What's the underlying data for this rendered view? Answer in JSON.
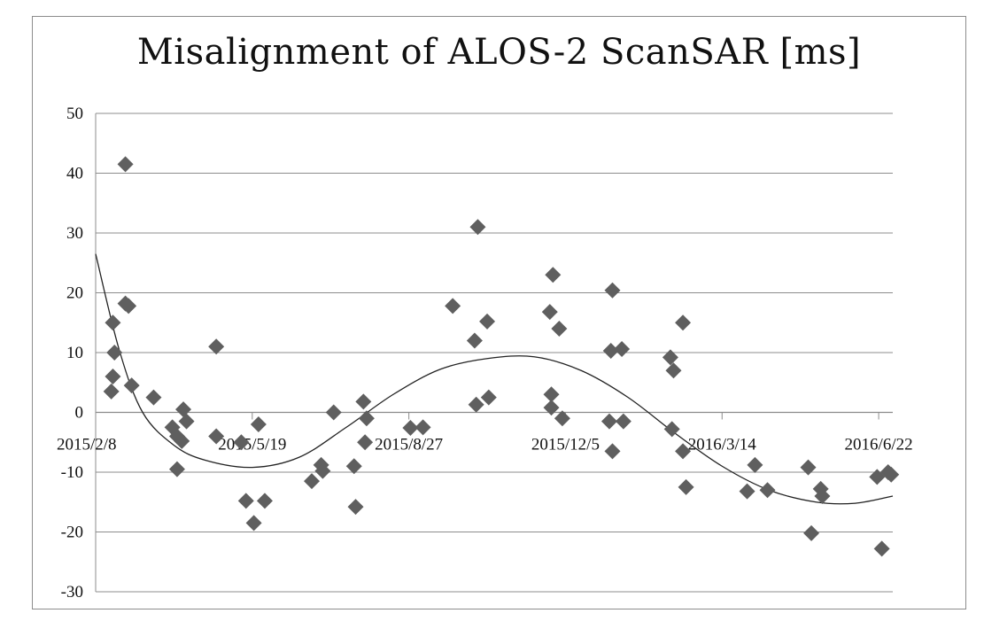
{
  "chart_data": {
    "type": "scatter",
    "title": "Misalignment of ALOS-2 ScanSAR [ms]",
    "xlabel": "",
    "ylabel": "",
    "ylim": [
      -30,
      50
    ],
    "y_ticks": [
      50,
      40,
      30,
      20,
      10,
      0,
      -10,
      -20,
      -30
    ],
    "x_tick_labels": [
      "2015/2/8",
      "2015/5/19",
      "2015/8/27",
      "2015/12/5",
      "2016/3/14",
      "2016/6/22"
    ],
    "xlim": [
      "2015-02-08",
      "2016-07-01"
    ],
    "grid": "horizontal",
    "legend": "none",
    "colors": {
      "marker": "#5f5f5f",
      "trendline": "#222222",
      "grid": "#8c8c8c"
    },
    "series": [
      {
        "marker": "diamond",
        "points": [
          {
            "x": "2015-02-19",
            "y": 15
          },
          {
            "x": "2015-02-20",
            "y": 10
          },
          {
            "x": "2015-02-19",
            "y": 6
          },
          {
            "x": "2015-02-18",
            "y": 3.5
          },
          {
            "x": "2015-02-27",
            "y": 41.5
          },
          {
            "x": "2015-02-27",
            "y": 18.2
          },
          {
            "x": "2015-03-01",
            "y": 17.8
          },
          {
            "x": "2015-03-03",
            "y": 4.5
          },
          {
            "x": "2015-03-17",
            "y": 2.5
          },
          {
            "x": "2015-03-29",
            "y": -2.5
          },
          {
            "x": "2015-04-01",
            "y": -4
          },
          {
            "x": "2015-04-01",
            "y": -9.5
          },
          {
            "x": "2015-04-05",
            "y": 0.5
          },
          {
            "x": "2015-04-07",
            "y": -1.5
          },
          {
            "x": "2015-04-04",
            "y": -4.8
          },
          {
            "x": "2015-04-26",
            "y": 11
          },
          {
            "x": "2015-04-26",
            "y": -4
          },
          {
            "x": "2015-05-12",
            "y": -5
          },
          {
            "x": "2015-05-15",
            "y": -14.8
          },
          {
            "x": "2015-05-20",
            "y": -18.5
          },
          {
            "x": "2015-05-23",
            "y": -2
          },
          {
            "x": "2015-05-27",
            "y": -14.8
          },
          {
            "x": "2015-06-26",
            "y": -11.5
          },
          {
            "x": "2015-07-02",
            "y": -8.8
          },
          {
            "x": "2015-07-03",
            "y": -9.8
          },
          {
            "x": "2015-07-10",
            "y": 0
          },
          {
            "x": "2015-07-23",
            "y": -9
          },
          {
            "x": "2015-07-24",
            "y": -15.8
          },
          {
            "x": "2015-07-29",
            "y": 1.8
          },
          {
            "x": "2015-07-31",
            "y": -1
          },
          {
            "x": "2015-07-30",
            "y": -5
          },
          {
            "x": "2015-08-28",
            "y": -2.6
          },
          {
            "x": "2015-09-05",
            "y": -2.5
          },
          {
            "x": "2015-09-24",
            "y": 17.8
          },
          {
            "x": "2015-10-08",
            "y": 12
          },
          {
            "x": "2015-10-10",
            "y": 31
          },
          {
            "x": "2015-10-16",
            "y": 15.2
          },
          {
            "x": "2015-10-09",
            "y": 1.3
          },
          {
            "x": "2015-10-17",
            "y": 2.5
          },
          {
            "x": "2015-11-27",
            "y": 23
          },
          {
            "x": "2015-11-25",
            "y": 16.8
          },
          {
            "x": "2015-12-01",
            "y": 14
          },
          {
            "x": "2015-11-26",
            "y": 3
          },
          {
            "x": "2015-11-26",
            "y": 0.8
          },
          {
            "x": "2015-12-03",
            "y": -1
          },
          {
            "x": "2016-01-04",
            "y": 20.4
          },
          {
            "x": "2016-01-03",
            "y": 10.3
          },
          {
            "x": "2016-01-10",
            "y": 10.6
          },
          {
            "x": "2016-01-02",
            "y": -1.5
          },
          {
            "x": "2016-01-04",
            "y": -6.5
          },
          {
            "x": "2016-01-11",
            "y": -1.5
          },
          {
            "x": "2016-02-10",
            "y": 9.2
          },
          {
            "x": "2016-02-12",
            "y": 7
          },
          {
            "x": "2016-02-18",
            "y": 15
          },
          {
            "x": "2016-02-11",
            "y": -2.8
          },
          {
            "x": "2016-02-18",
            "y": -6.5
          },
          {
            "x": "2016-02-20",
            "y": -12.5
          },
          {
            "x": "2016-03-30",
            "y": -13.2
          },
          {
            "x": "2016-04-04",
            "y": -8.8
          },
          {
            "x": "2016-04-12",
            "y": -13
          },
          {
            "x": "2016-05-08",
            "y": -9.2
          },
          {
            "x": "2016-05-10",
            "y": -20.2
          },
          {
            "x": "2016-05-16",
            "y": -12.8
          },
          {
            "x": "2016-05-17",
            "y": -14
          },
          {
            "x": "2016-06-21",
            "y": -10.8
          },
          {
            "x": "2016-06-24",
            "y": -22.8
          },
          {
            "x": "2016-06-28",
            "y": -10
          },
          {
            "x": "2016-06-30",
            "y": -10.4
          }
        ]
      }
    ],
    "trendline": {
      "type": "polynomial",
      "points": [
        {
          "x": "2015-02-08",
          "y": 26.5
        },
        {
          "x": "2015-02-23",
          "y": 10.5
        },
        {
          "x": "2015-03-10",
          "y": 0
        },
        {
          "x": "2015-03-30",
          "y": -5.5
        },
        {
          "x": "2015-04-19",
          "y": -8
        },
        {
          "x": "2015-05-19",
          "y": -9.2
        },
        {
          "x": "2015-06-18",
          "y": -7.5
        },
        {
          "x": "2015-07-18",
          "y": -2.5
        },
        {
          "x": "2015-08-17",
          "y": 3
        },
        {
          "x": "2015-09-16",
          "y": 7.2
        },
        {
          "x": "2015-10-16",
          "y": 9
        },
        {
          "x": "2015-11-15",
          "y": 9.3
        },
        {
          "x": "2015-12-15",
          "y": 7
        },
        {
          "x": "2016-01-14",
          "y": 2.5
        },
        {
          "x": "2016-02-13",
          "y": -3.5
        },
        {
          "x": "2016-03-14",
          "y": -9
        },
        {
          "x": "2016-04-13",
          "y": -13
        },
        {
          "x": "2016-05-13",
          "y": -15
        },
        {
          "x": "2016-06-07",
          "y": -15.2
        },
        {
          "x": "2016-07-01",
          "y": -14
        }
      ]
    }
  }
}
